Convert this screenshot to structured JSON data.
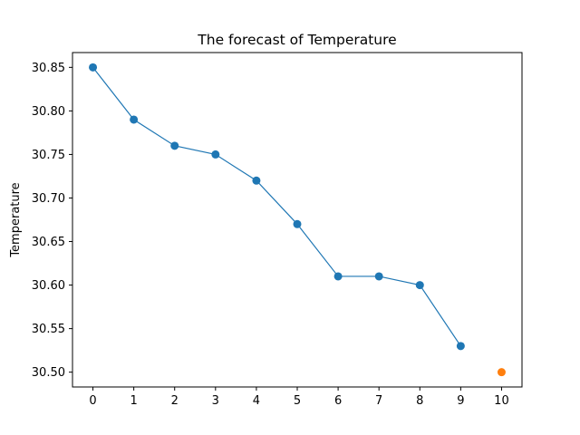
{
  "chart_data": {
    "type": "line",
    "title": "The forecast of Temperature",
    "xlabel": "",
    "ylabel": "Temperature",
    "xlim": [
      -0.5,
      10.5
    ],
    "ylim": [
      30.483,
      30.867
    ],
    "xticks": [
      "0",
      "1",
      "2",
      "3",
      "4",
      "5",
      "6",
      "7",
      "8",
      "9",
      "10"
    ],
    "yticks": [
      "30.50",
      "30.55",
      "30.60",
      "30.65",
      "30.70",
      "30.75",
      "30.80",
      "30.85"
    ],
    "grid": false,
    "series": [
      {
        "kind": "line-with-markers",
        "color": "#1f77b4",
        "x": [
          0,
          1,
          2,
          3,
          4,
          5,
          6,
          7,
          8,
          9
        ],
        "y": [
          30.85,
          30.79,
          30.76,
          30.75,
          30.72,
          30.67,
          30.61,
          30.61,
          30.6,
          30.53
        ]
      },
      {
        "kind": "marker-only",
        "color": "#ff7f0e",
        "x": [
          10
        ],
        "y": [
          30.5
        ]
      }
    ]
  }
}
